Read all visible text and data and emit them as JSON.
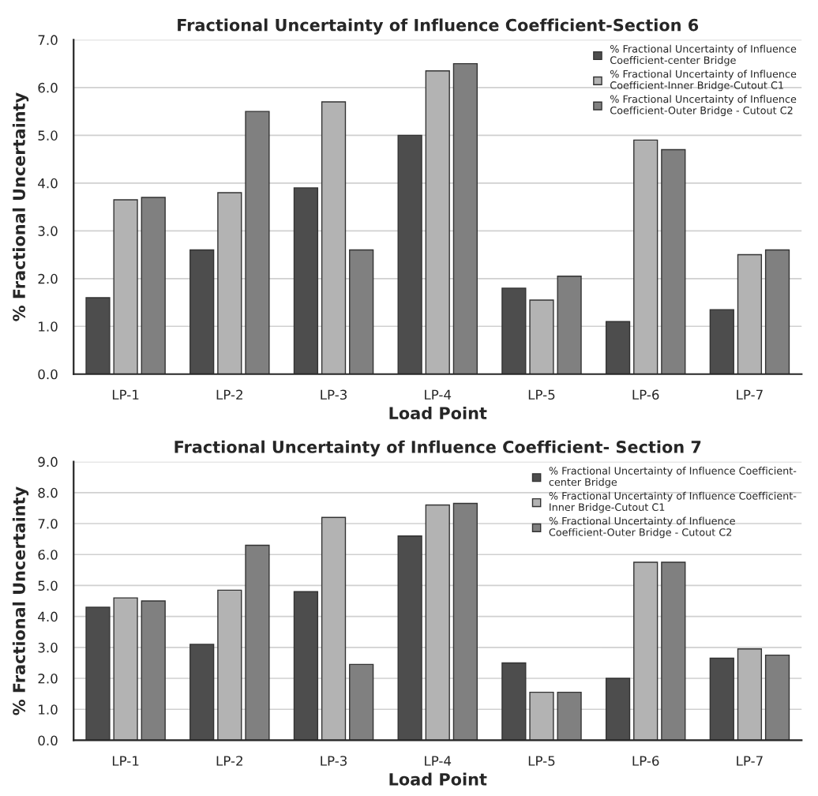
{
  "chart_data": [
    {
      "type": "bar",
      "title": "Fractional Uncertainty of Influence Coefficient-Section 6",
      "xlabel": "Load Point",
      "ylabel": "% Fractional Uncertainty",
      "categories": [
        "LP-1",
        "LP-2",
        "LP-3",
        "LP-4",
        "LP-5",
        "LP-6",
        "LP-7"
      ],
      "series": [
        {
          "name": "% Fractional Uncertainty of Influence Coefficient-center Bridge",
          "color": "#4d4d4d",
          "values": [
            1.6,
            2.6,
            3.9,
            5.0,
            1.8,
            1.1,
            1.35
          ]
        },
        {
          "name": "% Fractional Uncertainty of Influence Coefficient-Inner Bridge-Cutout C1",
          "color": "#b3b3b3",
          "values": [
            3.65,
            3.8,
            5.7,
            6.35,
            1.55,
            4.9,
            2.5
          ]
        },
        {
          "name": "% Fractional Uncertainty of Influence Coefficient-Outer Bridge - Cutout C2",
          "color": "#808080",
          "values": [
            3.7,
            5.5,
            2.6,
            6.5,
            2.05,
            4.7,
            2.6
          ]
        }
      ],
      "ylim": [
        0,
        7
      ],
      "yticks": [
        {
          "value": 0,
          "label": "0.0"
        },
        {
          "value": 1,
          "label": "1.0"
        },
        {
          "value": 2,
          "label": "2.0"
        },
        {
          "value": 3,
          "label": "3.0"
        },
        {
          "value": 4,
          "label": "4.0"
        },
        {
          "value": 5,
          "label": "5.0"
        },
        {
          "value": 6,
          "label": "6.0"
        },
        {
          "value": 7,
          "label": "7.0"
        }
      ],
      "grid": "y",
      "legend": "top right"
    },
    {
      "type": "bar",
      "title": "Fractional Uncertainty of Influence Coefficient- Section 7",
      "xlabel": "Load Point",
      "ylabel": "% Fractional Uncertainty",
      "categories": [
        "LP-1",
        "LP-2",
        "LP-3",
        "LP-4",
        "LP-5",
        "LP-6",
        "LP-7"
      ],
      "series": [
        {
          "name": "% Fractional Uncertainty of Influence Coefficient- center Bridge",
          "color": "#4d4d4d",
          "values": [
            4.3,
            3.1,
            4.8,
            6.6,
            2.5,
            2.0,
            2.65
          ]
        },
        {
          "name": "% Fractional Uncertainty of Influence Coefficient- Inner Bridge-Cutout C1",
          "color": "#b3b3b3",
          "values": [
            4.6,
            4.85,
            7.2,
            7.6,
            1.55,
            5.75,
            2.95
          ]
        },
        {
          "name": "% Fractional Uncertainty of Influence Coefficient-Outer Bridge - Cutout C2",
          "color": "#808080",
          "values": [
            4.5,
            6.3,
            2.45,
            7.65,
            1.55,
            5.75,
            2.75
          ]
        }
      ],
      "ylim": [
        0,
        9
      ],
      "yticks": [
        {
          "value": 0,
          "label": "0.0"
        },
        {
          "value": 1,
          "label": "1.0"
        },
        {
          "value": 2,
          "label": "2.0"
        },
        {
          "value": 3,
          "label": "3.0"
        },
        {
          "value": 4,
          "label": "4.0"
        },
        {
          "value": 5,
          "label": "5.0"
        },
        {
          "value": 6,
          "label": "6.0"
        },
        {
          "value": 7,
          "label": "7.0"
        },
        {
          "value": 8,
          "label": "8.0"
        },
        {
          "value": 9,
          "label": "9.0"
        }
      ],
      "grid": "y",
      "legend": "top right"
    }
  ]
}
